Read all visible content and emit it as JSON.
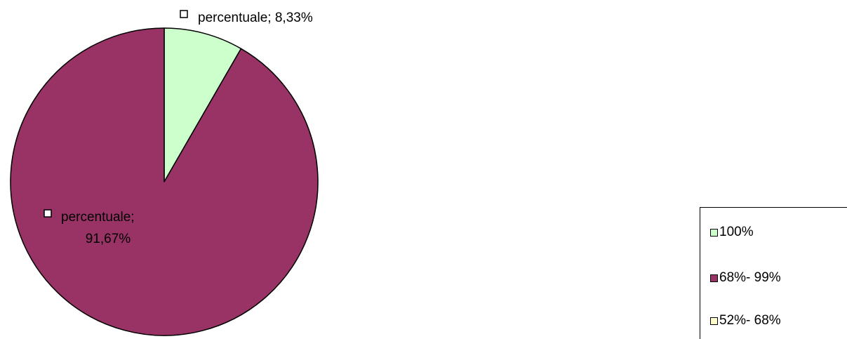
{
  "chart_data": {
    "type": "pie",
    "slices": [
      {
        "label": "percentuale; 8,33%",
        "value": 8.33,
        "legend": "100%",
        "color": "#ccffcc"
      },
      {
        "label": "percentuale; 91,67%",
        "value": 91.67,
        "legend": "68%- 99%",
        "color": "#993366"
      },
      {
        "label": "",
        "value": 0,
        "legend": "52%- 68%",
        "color": "#ffffcc"
      }
    ],
    "data_label_lines": [
      [
        "percentuale; 8,33%"
      ],
      [
        "percentuale;",
        "91,67%"
      ]
    ],
    "legend_placement": "bottom-right",
    "outline_color": "#000000"
  }
}
